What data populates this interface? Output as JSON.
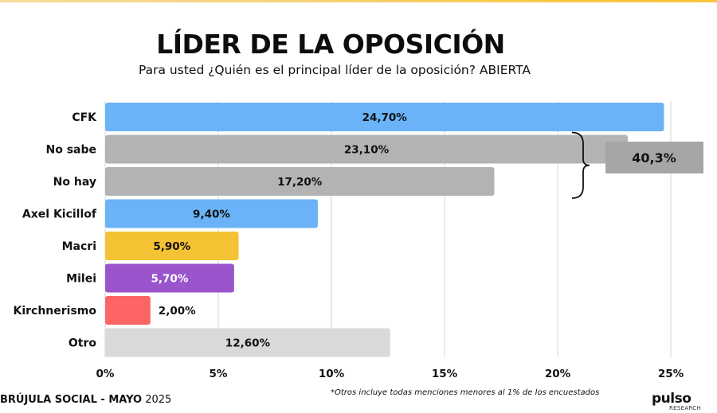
{
  "header": {
    "title": "LÍDER DE LA OPOSICIÓN",
    "subtitle": "Para usted ¿Quién es el principal líder de la oposición? ABIERTA"
  },
  "footer": {
    "source_bold": "BRÚJULA SOCIAL - MAYO",
    "source_year": "2025",
    "footnote": "*Otros incluye todas menciones menores al 1% de los encuestados",
    "logo_word": "pulso",
    "logo_sub": "RESEARCH"
  },
  "colors": {
    "blue": "#6ab3f8",
    "gray": "#b3b3b3",
    "yellow": "#f5c234",
    "purple": "#9a55cc",
    "red": "#fc6466",
    "lightgray": "#d9d9d9",
    "accent_top": "#f9c94a"
  },
  "chart_data": {
    "type": "bar",
    "orientation": "horizontal",
    "title": "LÍDER DE LA OPOSICIÓN",
    "subtitle": "Para usted ¿Quién es el principal líder de la oposición? ABIERTA",
    "categories": [
      "CFK",
      "No sabe",
      "No hay",
      "Axel Kicillof",
      "Macri",
      "Milei",
      "Kirchnerismo",
      "Otro"
    ],
    "values": [
      24.7,
      23.1,
      17.2,
      9.4,
      5.9,
      5.7,
      2.0,
      12.6
    ],
    "value_labels": [
      "24,70%",
      "23,10%",
      "17,20%",
      "9,40%",
      "5,90%",
      "5,70%",
      "2,00%",
      "12,60%"
    ],
    "bar_colors": [
      "#6ab3f8",
      "#b3b3b3",
      "#b3b3b3",
      "#6ab3f8",
      "#f5c234",
      "#9a55cc",
      "#fc6466",
      "#d9d9d9"
    ],
    "label_colors": [
      "#111111",
      "#111111",
      "#111111",
      "#111111",
      "#111111",
      "#ffffff",
      "#111111",
      "#111111"
    ],
    "xlim": [
      0,
      25
    ],
    "xticks": [
      0,
      5,
      10,
      15,
      20,
      25
    ],
    "xtick_labels": [
      "0%",
      "5%",
      "10%",
      "15%",
      "20%",
      "25%"
    ],
    "xlabel": "",
    "ylabel": "",
    "grid": "vertical",
    "annotation": {
      "text": "40,3%",
      "brackets": [
        "No sabe",
        "No hay"
      ],
      "value": 40.3
    }
  }
}
